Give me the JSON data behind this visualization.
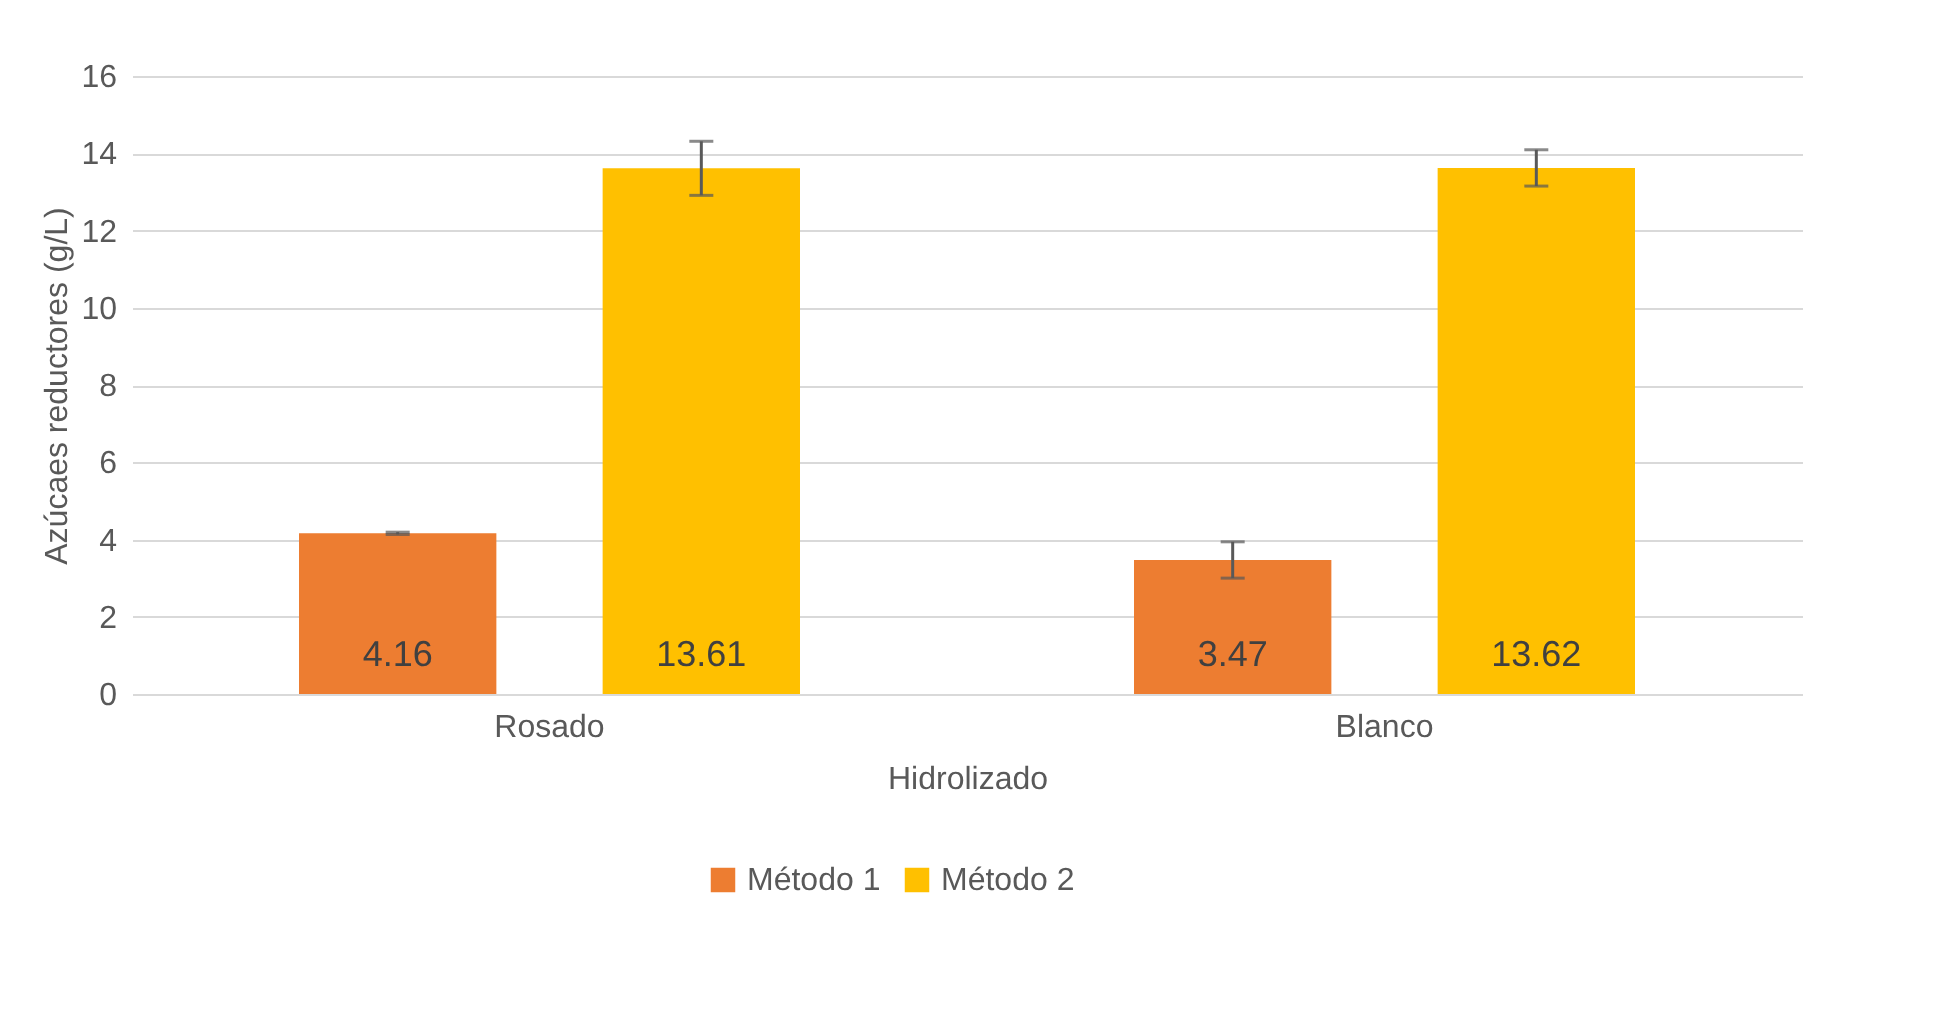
{
  "chart_data": {
    "type": "bar",
    "xlabel": "Hidrolizado",
    "ylabel": "Azúcaes reductores (g/L)",
    "categories": [
      "Rosado",
      "Blanco"
    ],
    "series": [
      {
        "name": "Método 1",
        "color": "#ed7d31",
        "values": [
          4.16,
          3.47
        ],
        "errors": [
          0.03,
          0.47
        ]
      },
      {
        "name": "Método 2",
        "color": "#ffc000",
        "values": [
          13.61,
          13.62
        ],
        "errors": [
          0.7,
          0.47
        ]
      }
    ],
    "ylim": [
      0,
      16
    ],
    "yticks": [
      0,
      2,
      4,
      6,
      8,
      10,
      12,
      14,
      16
    ],
    "grid": "y",
    "legend": "bottom",
    "data_labels": true
  }
}
